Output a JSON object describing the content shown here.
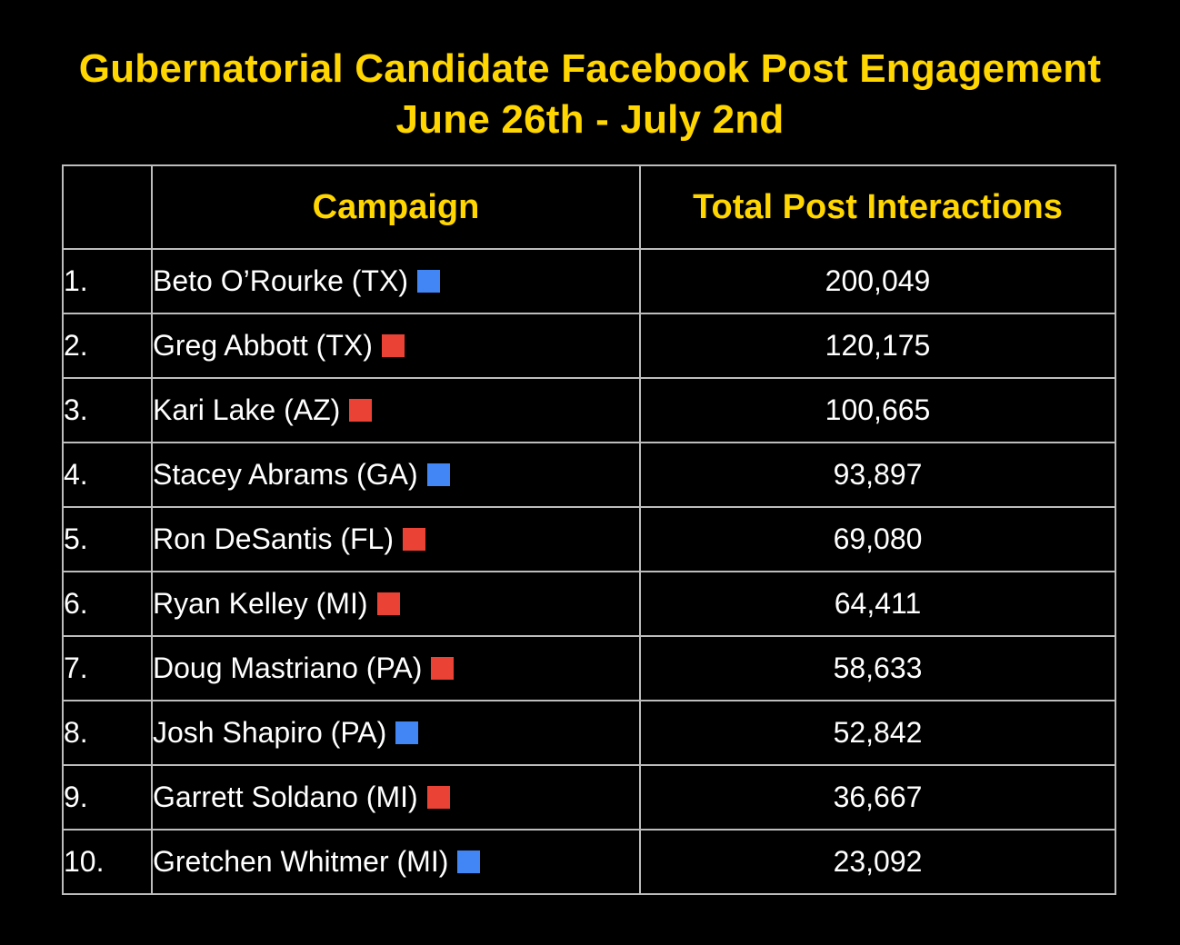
{
  "title_line1": "Gubernatorial Candidate Facebook Post Engagement",
  "title_line2": "June 26th - July 2nd",
  "colors": {
    "title": "#FFD600",
    "democrat": "#4285F4",
    "republican": "#EA4335",
    "background": "#000000"
  },
  "chart_data": {
    "type": "table",
    "columns": [
      "",
      "Campaign",
      "Total Post Interactions"
    ],
    "rows": [
      {
        "rank": "1.",
        "campaign": "Beto O’Rourke (TX)",
        "party": "democrat",
        "interactions": "200,049",
        "value": 200049
      },
      {
        "rank": "2.",
        "campaign": "Greg Abbott (TX)",
        "party": "republican",
        "interactions": "120,175",
        "value": 120175
      },
      {
        "rank": "3.",
        "campaign": "Kari Lake (AZ)",
        "party": "republican",
        "interactions": "100,665",
        "value": 100665
      },
      {
        "rank": "4.",
        "campaign": "Stacey Abrams (GA)",
        "party": "democrat",
        "interactions": "93,897",
        "value": 93897
      },
      {
        "rank": "5.",
        "campaign": "Ron DeSantis (FL)",
        "party": "republican",
        "interactions": "69,080",
        "value": 69080
      },
      {
        "rank": "6.",
        "campaign": "Ryan Kelley (MI)",
        "party": "republican",
        "interactions": "64,411",
        "value": 64411
      },
      {
        "rank": "7.",
        "campaign": "Doug Mastriano (PA)",
        "party": "republican",
        "interactions": "58,633",
        "value": 58633
      },
      {
        "rank": "8.",
        "campaign": "Josh Shapiro (PA)",
        "party": "democrat",
        "interactions": "52,842",
        "value": 52842
      },
      {
        "rank": "9.",
        "campaign": "Garrett Soldano (MI)",
        "party": "republican",
        "interactions": "36,667",
        "value": 36667
      },
      {
        "rank": "10.",
        "campaign": "Gretchen Whitmer (MI)",
        "party": "democrat",
        "interactions": "23,092",
        "value": 23092
      }
    ]
  }
}
